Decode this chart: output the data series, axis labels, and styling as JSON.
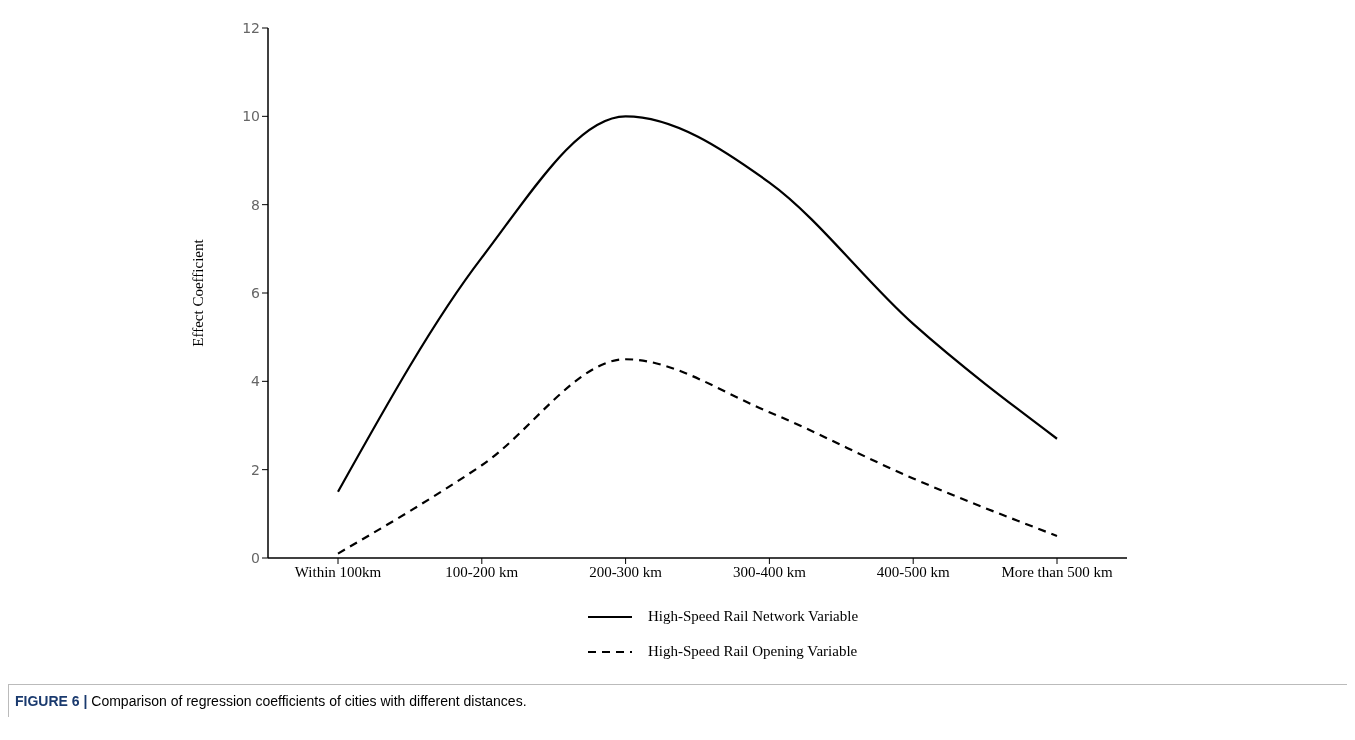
{
  "chart_data": {
    "type": "line",
    "ylabel": "Effect Coefficient",
    "categories": [
      "Within 100km",
      "100-200 km",
      "200-300 km",
      "300-400 km",
      "400-500 km",
      "More than 500 km"
    ],
    "series": [
      {
        "name": "High-Speed Rail Network Variable",
        "color": "#000000",
        "line_style": "solid",
        "values": [
          1.5,
          6.8,
          10,
          8.5,
          5.3,
          2.7
        ]
      },
      {
        "name": "High-Speed Rail Opening Variable",
        "color": "#000000",
        "line_style": "dashed",
        "values": [
          0.1,
          2.1,
          4.5,
          3.3,
          1.8,
          0.5
        ]
      }
    ],
    "ylim": [
      0,
      12
    ],
    "yticks": [
      0,
      2,
      4,
      6,
      8,
      10,
      12
    ],
    "legend": "bottom",
    "marker": "none",
    "annotations": [
      "FIGURE 6 | Comparison of regression coefficients of cities with different distances."
    ]
  }
}
